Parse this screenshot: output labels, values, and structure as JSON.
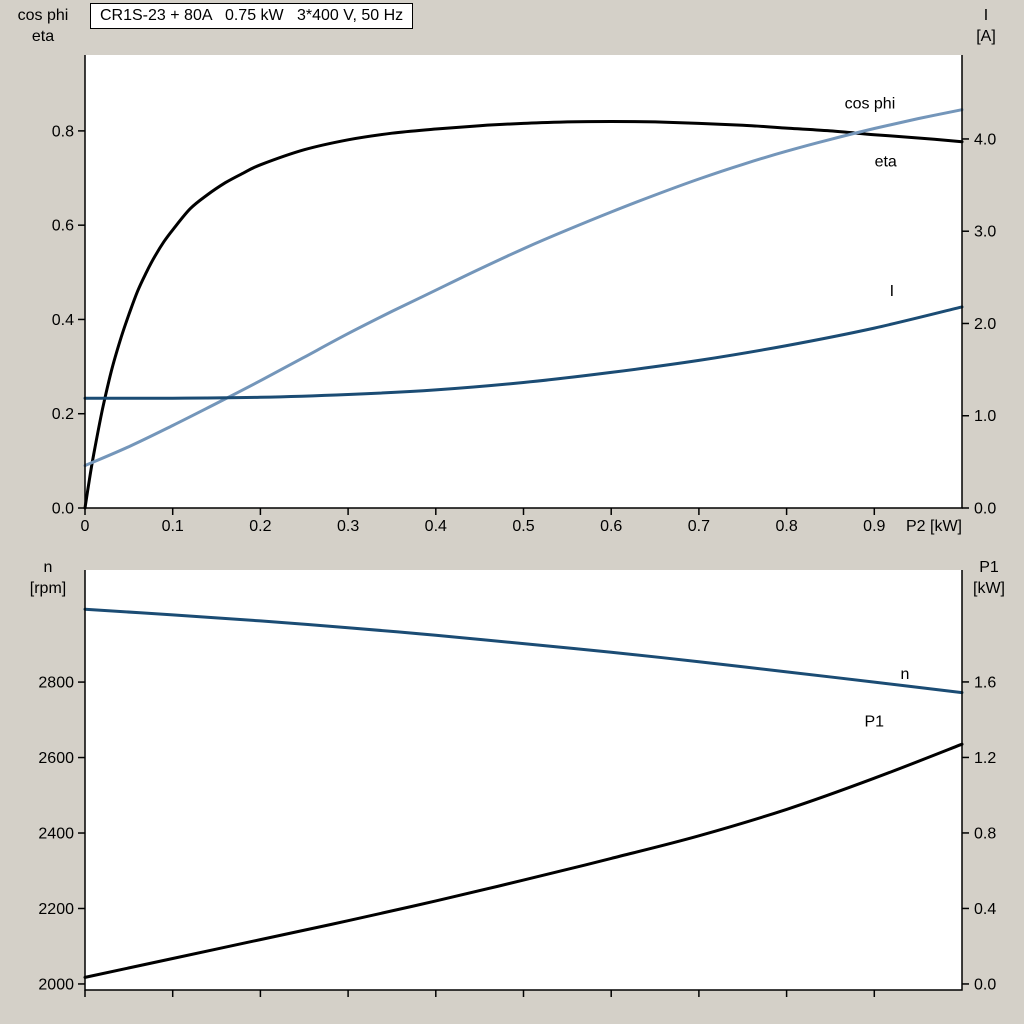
{
  "window": {
    "bg": "#d4d0c8",
    "plot_bg": "#ffffff",
    "axis_color": "#000000"
  },
  "chart_data": [
    {
      "type": "line",
      "title": "CR1S-23 + 80A   0.75 kW   3*400 V, 50 Hz",
      "x_axis": {
        "min": 0,
        "max": 1.0,
        "tick_values": [
          0,
          0.1,
          0.2,
          0.3,
          0.4,
          0.5,
          0.6,
          0.7,
          0.8,
          0.9
        ],
        "tick_labels": [
          "0",
          "0.1",
          "0.2",
          "0.3",
          "0.4",
          "0.5",
          "0.6",
          "0.7",
          "0.8",
          "0.9"
        ],
        "show_tick_labels": true,
        "end_label": "P2 [kW]"
      },
      "left_axis": {
        "min": 0,
        "max": 0.961,
        "tick_values": [
          0,
          0.2,
          0.4,
          0.6,
          0.8
        ],
        "tick_labels": [
          "0.0",
          "0.2",
          "0.4",
          "0.6",
          "0.8"
        ],
        "title_lines": [
          "cos phi",
          "eta"
        ]
      },
      "right_axis": {
        "min": 0,
        "max": 4.91,
        "tick_values": [
          0,
          1,
          2,
          3,
          4
        ],
        "tick_labels": [
          "0.0",
          "1.0",
          "2.0",
          "3.0",
          "4.0"
        ],
        "title_lines": [
          "I",
          "[A]"
        ]
      },
      "series": [
        {
          "name": "eta",
          "axis": "left",
          "color": "#000000",
          "width": 3,
          "x": [
            0,
            0.005,
            0.01,
            0.02,
            0.03,
            0.04,
            0.05,
            0.06,
            0.07,
            0.08,
            0.09,
            0.1,
            0.12,
            0.14,
            0.16,
            0.18,
            0.2,
            0.25,
            0.3,
            0.35,
            0.4,
            0.45,
            0.5,
            0.55,
            0.6,
            0.65,
            0.7,
            0.75,
            0.8,
            0.85,
            0.9,
            0.95,
            1.0
          ],
          "y": [
            0,
            0.06,
            0.115,
            0.21,
            0.29,
            0.355,
            0.41,
            0.46,
            0.5,
            0.535,
            0.565,
            0.59,
            0.635,
            0.665,
            0.69,
            0.71,
            0.728,
            0.76,
            0.781,
            0.795,
            0.804,
            0.811,
            0.816,
            0.819,
            0.82,
            0.819,
            0.816,
            0.812,
            0.806,
            0.8,
            0.792,
            0.785,
            0.777
          ],
          "label": {
            "text": "eta",
            "x": 0.913,
            "y": 0.735
          }
        },
        {
          "name": "cos-phi",
          "axis": "left",
          "color": "#7496ba",
          "width": 3,
          "x": [
            0,
            0.05,
            0.1,
            0.15,
            0.2,
            0.25,
            0.3,
            0.35,
            0.4,
            0.45,
            0.5,
            0.55,
            0.6,
            0.65,
            0.7,
            0.75,
            0.8,
            0.85,
            0.9,
            0.95,
            1.0
          ],
          "y": [
            0.09,
            0.13,
            0.175,
            0.222,
            0.27,
            0.32,
            0.37,
            0.417,
            0.462,
            0.507,
            0.55,
            0.59,
            0.628,
            0.664,
            0.698,
            0.729,
            0.757,
            0.782,
            0.805,
            0.826,
            0.845
          ],
          "label": {
            "text": "cos phi",
            "x": 0.895,
            "y": 0.858
          }
        },
        {
          "name": "I",
          "axis": "right",
          "color": "#1b4c74",
          "width": 3,
          "x": [
            0,
            0.1,
            0.2,
            0.3,
            0.4,
            0.5,
            0.6,
            0.7,
            0.8,
            0.9,
            1.0
          ],
          "y": [
            1.19,
            1.19,
            1.2,
            1.23,
            1.28,
            1.36,
            1.47,
            1.6,
            1.76,
            1.95,
            2.18
          ],
          "label": {
            "text": "I",
            "x": 0.92,
            "y": 2.35
          }
        }
      ]
    },
    {
      "type": "line",
      "title": "",
      "x_axis": {
        "min": 0,
        "max": 1.0,
        "tick_values": [
          0,
          0.1,
          0.2,
          0.3,
          0.4,
          0.5,
          0.6,
          0.7,
          0.8,
          0.9
        ],
        "tick_labels": [],
        "show_tick_labels": false,
        "end_label": ""
      },
      "left_axis": {
        "min": 1984,
        "max": 3097,
        "tick_values": [
          2000,
          2200,
          2400,
          2600,
          2800
        ],
        "tick_labels": [
          "2000",
          "2200",
          "2400",
          "2600",
          "2800"
        ],
        "title_lines": [
          "n",
          "[rpm]"
        ]
      },
      "right_axis": {
        "min": -0.032,
        "max": 2.193,
        "tick_values": [
          0,
          0.4,
          0.8,
          1.2,
          1.6
        ],
        "tick_labels": [
          "0.0",
          "0.4",
          "0.8",
          "1.2",
          "1.6"
        ],
        "title_lines": [
          "P1",
          "[kW]"
        ]
      },
      "series": [
        {
          "name": "n",
          "axis": "left",
          "color": "#1b4c74",
          "width": 3,
          "x": [
            0,
            0.1,
            0.2,
            0.3,
            0.4,
            0.5,
            0.6,
            0.7,
            0.8,
            0.9,
            1.0
          ],
          "y": [
            2993,
            2978,
            2962,
            2944,
            2924,
            2902,
            2879,
            2854,
            2827,
            2800,
            2772
          ],
          "label": {
            "text": "n",
            "x": 0.935,
            "y": 2822
          }
        },
        {
          "name": "P1",
          "axis": "right",
          "color": "#000000",
          "width": 3,
          "x": [
            0,
            0.1,
            0.2,
            0.3,
            0.4,
            0.5,
            0.6,
            0.7,
            0.8,
            0.9,
            1.0
          ],
          "y": [
            0.035,
            0.135,
            0.235,
            0.335,
            0.44,
            0.55,
            0.665,
            0.785,
            0.925,
            1.09,
            1.27
          ],
          "label": {
            "text": "P1",
            "x": 0.9,
            "y": 1.39
          }
        }
      ]
    }
  ]
}
